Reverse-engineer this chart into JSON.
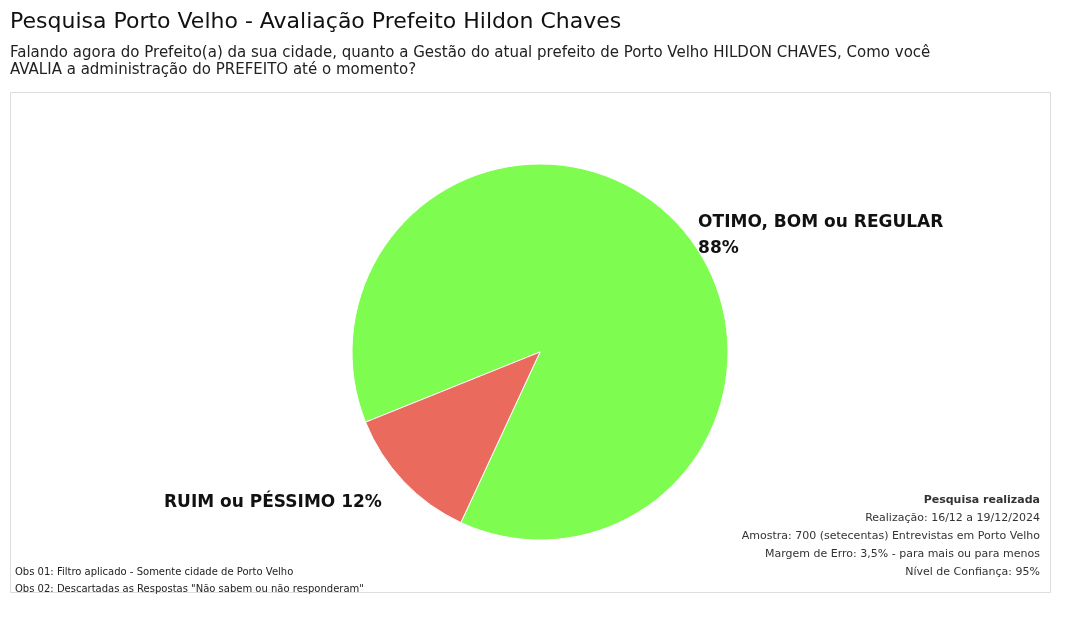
{
  "chart_data": {
    "type": "pie",
    "title": "Pesquisa Porto Velho - Avaliação Prefeito Hildon Chaves",
    "subtitle": "Falando agora do Prefeito(a) da sua cidade, quanto a Gestão do atual prefeito de Porto Velho HILDON CHAVES, Como você AVALIA a administração do PREFEITO até o momento?",
    "categories": [
      "OTIMO, BOM ou REGULAR",
      "RUIM ou PÉSSIMO"
    ],
    "values": [
      88,
      12
    ],
    "colors": [
      "#7efc4f",
      "#ea6b5e"
    ],
    "value_labels": [
      "88%",
      "12%"
    ],
    "legend": false,
    "annotations": [
      "Pesquisa realizada",
      "Realização: 16/12 a 19/12/2024",
      "Amostra: 700 (setecentas) Entrevistas em Porto Velho",
      "Margem de Erro: 3,5% - para mais ou para menos",
      "Nível de Confiança: 95%",
      "Obs 01: Filtro aplicado - Somente cidade de Porto Velho",
      "Obs 02: Descartadas as Respostas \"Não sabem ou não responderam\""
    ]
  }
}
